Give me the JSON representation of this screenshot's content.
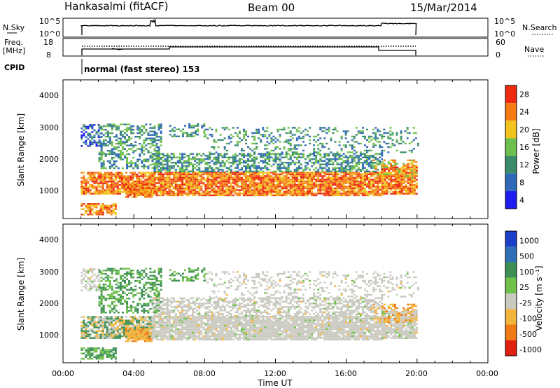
{
  "header": {
    "station": "Hankasalmi (fitACF)",
    "beam": "Beam 00",
    "date": "15/Mar/2014"
  },
  "panels": {
    "nsky_label": "N.Sky",
    "nsky_ticks": [
      "10^5",
      "10^0"
    ],
    "nsearch_label": "N.Search",
    "nsearch_ticks": [
      "10^5",
      "10^0"
    ],
    "freq_label_line1": "Freq.",
    "freq_label_line2": "[MHz]",
    "freq_ticks": [
      "18",
      "8"
    ],
    "nave_label": "Nave",
    "nave_ticks": [
      "60",
      "0"
    ],
    "cpid_label": "CPID",
    "cpid_text": "normal (fast stereo) 153"
  },
  "chart_data": [
    {
      "type": "heatmap",
      "name": "power",
      "ylabel": "Slant Range [km]",
      "yticks": [
        "4000",
        "3000",
        "2000",
        "1000"
      ],
      "ylim": [
        250,
        4600
      ],
      "colorbar_label": "Power [dB]",
      "colorbar_ticks": [
        "28",
        "24",
        "20",
        "16",
        "12",
        "8",
        "4"
      ],
      "colorbar_colors": [
        "#1c1cf0",
        "#2f6ab8",
        "#3a8c6b",
        "#6dc04c",
        "#f2c31e",
        "#f47b12",
        "#ee2a10"
      ]
    },
    {
      "type": "heatmap",
      "name": "velocity",
      "ylabel": "Slant Range [km]",
      "yticks": [
        "4000",
        "3000",
        "2000",
        "1000"
      ],
      "ylim": [
        250,
        4600
      ],
      "colorbar_label": "Velocity [m s⁻¹]",
      "colorbar_ticks": [
        "1000",
        "500",
        "100",
        "25",
        "-25",
        "-100",
        "-500",
        "-1000"
      ],
      "colorbar_colors": [
        "#1c3fc8",
        "#2e6fb6",
        "#3d8f55",
        "#6fc14a",
        "#c9c9c0",
        "#f3b43c",
        "#f07a15",
        "#e02010"
      ]
    }
  ],
  "xaxis": {
    "label": "Time UT",
    "ticks": [
      "00:00",
      "04:00",
      "08:00",
      "12:00",
      "16:00",
      "20:00",
      "00:00"
    ]
  }
}
